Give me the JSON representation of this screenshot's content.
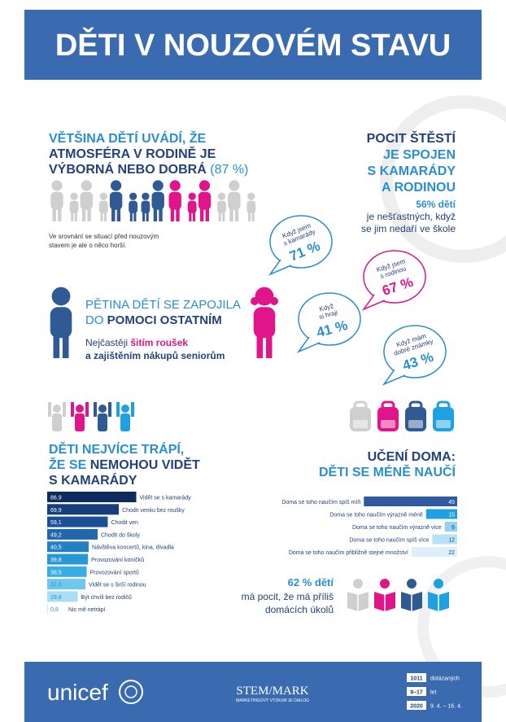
{
  "header": {
    "title": "DĚTI V NOUZOVÉM STAVU"
  },
  "atmosphere": {
    "lines": [
      "VĚTŠINA DĚTÍ UVÁDÍ, ŽE",
      "ATMOSFÉRA V RODINĚ JE",
      "VÝBORNÁ NEBO DOBRÁ"
    ],
    "share": "(87 %)",
    "note_lines": [
      "Ve srovnání se situací před nouzovým",
      "stavem je ale o něco horší."
    ]
  },
  "happiness": {
    "title": "POCIT ŠTĚSTÍ",
    "lines": [
      "JE SPOJEN",
      "S KAMARÁDY",
      "A RODINOU"
    ],
    "stat": "56% dětí",
    "stat_lines": [
      "je nešťastných, když",
      "se jim nedaří ve škole"
    ],
    "bubbles": [
      {
        "lines": [
          "Když jsem",
          "s kamarády"
        ],
        "value": "71 %"
      },
      {
        "lines": [
          "Když jsem",
          "s rodinou"
        ],
        "value": "67 %"
      },
      {
        "lines": [
          "Když",
          "si hraji"
        ],
        "value": "41 %"
      },
      {
        "lines": [
          "Když mám",
          "dobré známky"
        ],
        "value": "43 %"
      }
    ]
  },
  "help": {
    "line1": "PĚTINA DĚTÍ SE ZAPOJILA",
    "line2_lead": "DO",
    "line2_bold": "POMOCI OSTATNÍM",
    "detail_lead": "Nejčastěji",
    "detail_accent": "šitím roušek",
    "detail_line2": "a zajištěním nákupů seniorům"
  },
  "worries": {
    "title_line1": "DĚTI NEJVÍCE TRÁPÍ,",
    "title_line2_lead": "ŽE SE",
    "title_line2_bold": "NEMOHOU VIDĚT",
    "title_line3": "S KAMARÁDY",
    "labels": [
      "Vidět se s kamarády",
      "Chodit venku bez roušky",
      "Chodit ven",
      "Chodit do školy",
      "Návštěva koncertů, kina, divadla",
      "Provozování koníčků",
      "Provozování sportů",
      "Vidět se s širší rodinou",
      "Být chvíli bez rodičů",
      "Nic mě netrápí"
    ],
    "values": [
      86.9,
      69.9,
      59.1,
      49.2,
      40.5,
      39.8,
      38.5,
      37.3,
      29.8,
      0.8
    ],
    "value_labels": [
      "86,9",
      "69,9",
      "59,1",
      "49,2",
      "40,5",
      "39,8",
      "38,5",
      "37,3",
      "29,8",
      "0,8"
    ],
    "colors": [
      "#0c2b5e",
      "#163e7a",
      "#1d4f95",
      "#2266ad",
      "#2480c5",
      "#2797d6",
      "#3aaee3",
      "#6fc7ee",
      "#a9def5",
      "#d3eefa"
    ]
  },
  "learning": {
    "title_line1": "UČENÍ DOMA:",
    "title_line2": "DĚTI SE MÉNĚ NAUČÍ",
    "labels": [
      "Doma se toho naučím spíš míň",
      "Doma se toho naučím výrazně méně",
      "Doma se toho naučím výrazně více",
      "Doma se toho naučím spíš více",
      "Doma se toho naučím přibližně stejné množství"
    ],
    "values": [
      45,
      15,
      6,
      12,
      22
    ],
    "colors": [
      "#2f5aa0",
      "#1fa0e0",
      "#8fd3f2",
      "#b8e2f6",
      "#ddf0fa"
    ],
    "stat": "62 % dětí",
    "stat_lines": [
      "má pocit, že má příliš",
      "domácích úkolů"
    ]
  },
  "footer": {
    "unicef": "unicef",
    "stem": "STEM/MARK",
    "stem_tagline": "MARKETINGOVÝ VÝZKUM JE DIALOG",
    "facts": [
      {
        "value": "1011",
        "label": "dotázaných"
      },
      {
        "value": "9–17",
        "label": "let"
      },
      {
        "value": "2020",
        "label": "9. 4. – 16. 4."
      }
    ]
  }
}
